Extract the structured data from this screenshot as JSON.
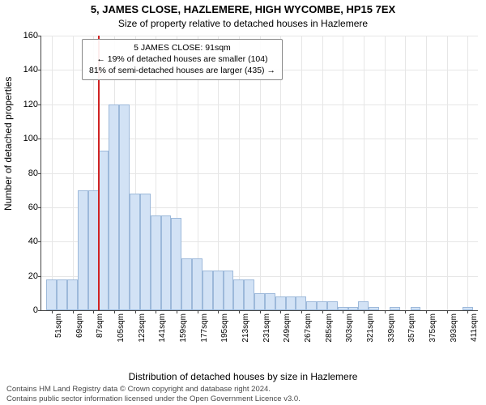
{
  "titles": {
    "address": "5, JAMES CLOSE, HAZLEMERE, HIGH WYCOMBE, HP15 7EX",
    "subtitle": "Size of property relative to detached houses in Hazlemere"
  },
  "axes": {
    "ylabel": "Number of detached properties",
    "xlabel": "Distribution of detached houses by size in Hazlemere",
    "ylim_max": 160,
    "yticks": [
      0,
      20,
      40,
      60,
      80,
      100,
      120,
      140,
      160
    ],
    "xticks": [
      "51sqm",
      "69sqm",
      "87sqm",
      "105sqm",
      "123sqm",
      "141sqm",
      "159sqm",
      "177sqm",
      "195sqm",
      "213sqm",
      "231sqm",
      "249sqm",
      "267sqm",
      "285sqm",
      "303sqm",
      "321sqm",
      "339sqm",
      "357sqm",
      "375sqm",
      "393sqm",
      "411sqm"
    ]
  },
  "chart": {
    "type": "histogram",
    "bar_fill": "#d2e2f5",
    "bar_stroke": "#9db9da",
    "grid_color": "#e6e6e6",
    "axis_color": "#444444",
    "background": "#ffffff",
    "reference_line_color": "#d02323",
    "reference_value_sqm": 91,
    "x_min": 42,
    "x_max": 420,
    "bin_width_sqm": 9,
    "bars": [
      {
        "x": 51,
        "h": 18
      },
      {
        "x": 60,
        "h": 18
      },
      {
        "x": 69,
        "h": 18
      },
      {
        "x": 78,
        "h": 70
      },
      {
        "x": 87,
        "h": 70
      },
      {
        "x": 96,
        "h": 93
      },
      {
        "x": 105,
        "h": 120
      },
      {
        "x": 114,
        "h": 120
      },
      {
        "x": 123,
        "h": 68
      },
      {
        "x": 132,
        "h": 68
      },
      {
        "x": 141,
        "h": 55
      },
      {
        "x": 150,
        "h": 55
      },
      {
        "x": 159,
        "h": 54
      },
      {
        "x": 168,
        "h": 30
      },
      {
        "x": 177,
        "h": 30
      },
      {
        "x": 186,
        "h": 23
      },
      {
        "x": 195,
        "h": 23
      },
      {
        "x": 204,
        "h": 23
      },
      {
        "x": 213,
        "h": 18
      },
      {
        "x": 222,
        "h": 18
      },
      {
        "x": 231,
        "h": 10
      },
      {
        "x": 240,
        "h": 10
      },
      {
        "x": 249,
        "h": 8
      },
      {
        "x": 258,
        "h": 8
      },
      {
        "x": 267,
        "h": 8
      },
      {
        "x": 276,
        "h": 5
      },
      {
        "x": 285,
        "h": 5
      },
      {
        "x": 294,
        "h": 5
      },
      {
        "x": 303,
        "h": 2
      },
      {
        "x": 312,
        "h": 2
      },
      {
        "x": 321,
        "h": 5
      },
      {
        "x": 330,
        "h": 2
      },
      {
        "x": 339,
        "h": 0
      },
      {
        "x": 348,
        "h": 2
      },
      {
        "x": 357,
        "h": 0
      },
      {
        "x": 366,
        "h": 2
      },
      {
        "x": 375,
        "h": 0
      },
      {
        "x": 384,
        "h": 0
      },
      {
        "x": 393,
        "h": 0
      },
      {
        "x": 402,
        "h": 0
      },
      {
        "x": 411,
        "h": 2
      }
    ]
  },
  "legend": {
    "line1": "5 JAMES CLOSE: 91sqm",
    "line2": "← 19% of detached houses are smaller (104)",
    "line3": "81% of semi-detached houses are larger (435) →"
  },
  "license": {
    "line1": "Contains HM Land Registry data © Crown copyright and database right 2024.",
    "line2": "Contains public sector information licensed under the Open Government Licence v3.0."
  }
}
